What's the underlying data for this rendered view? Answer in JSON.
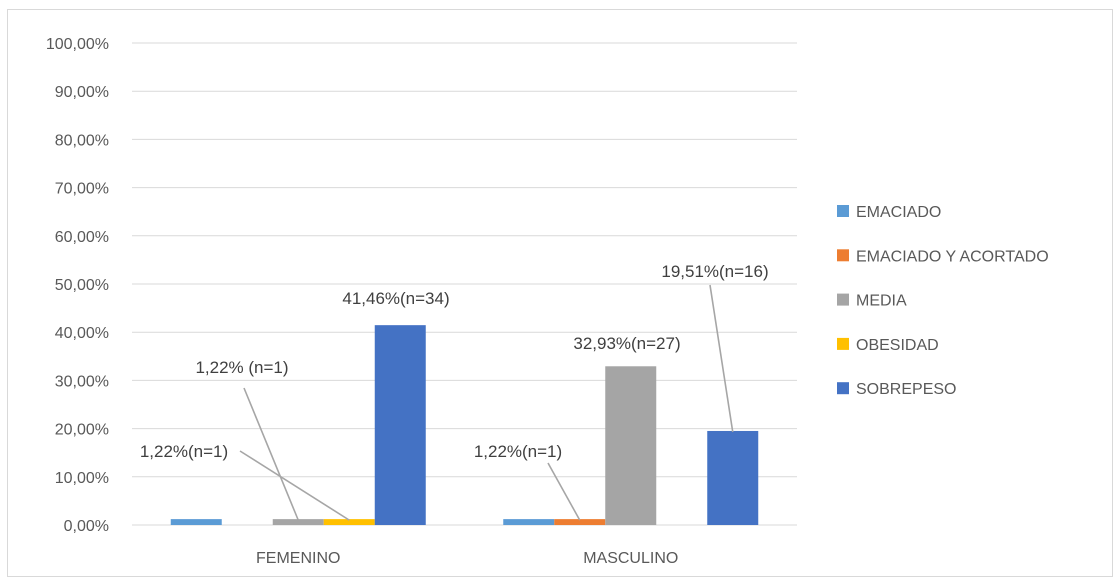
{
  "chart_data": {
    "type": "bar",
    "title": "",
    "xlabel": "",
    "ylabel": "",
    "ylim": [
      0,
      100
    ],
    "y_ticks": [
      "0,00%",
      "10,00%",
      "20,00%",
      "30,00%",
      "40,00%",
      "50,00%",
      "60,00%",
      "70,00%",
      "80,00%",
      "90,00%",
      "100,00%"
    ],
    "categories": [
      "FEMENINO",
      "MASCULINO"
    ],
    "grid": true,
    "legend_position": "right",
    "series": [
      {
        "name": "EMACIADO",
        "color": "#5b9bd5",
        "values": [
          1.22,
          1.22
        ]
      },
      {
        "name": "EMACIADO Y ACORTADO",
        "color": "#ed7d31",
        "values": [
          0,
          1.22
        ]
      },
      {
        "name": "MEDIA",
        "color": "#a5a5a5",
        "values": [
          1.22,
          32.93
        ]
      },
      {
        "name": "OBESIDAD",
        "color": "#ffc000",
        "values": [
          1.22,
          0
        ]
      },
      {
        "name": "SOBREPESO",
        "color": "#4472c4",
        "values": [
          41.46,
          19.51
        ]
      }
    ],
    "data_labels": [
      {
        "category": 0,
        "series": 2,
        "text": "1,22% (n=1)"
      },
      {
        "category": 0,
        "series": 3,
        "text": "1,22%(n=1)"
      },
      {
        "category": 0,
        "series": 4,
        "text": "41,46%(n=34)"
      },
      {
        "category": 1,
        "series": 1,
        "text": "1,22%(n=1)"
      },
      {
        "category": 1,
        "series": 2,
        "text": "32,93%(n=27)"
      },
      {
        "category": 1,
        "series": 4,
        "text": "19,51%(n=16)"
      }
    ]
  }
}
